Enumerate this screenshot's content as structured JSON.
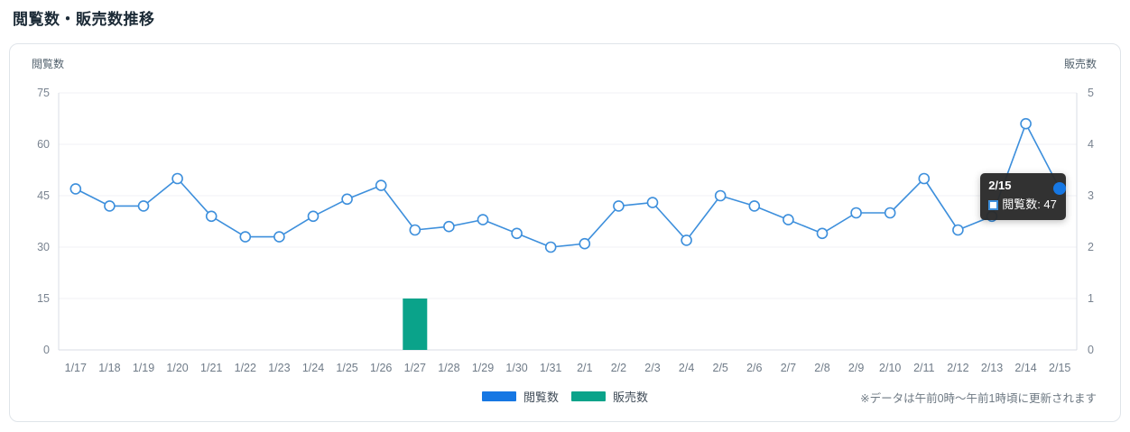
{
  "page": {
    "title": "閲覧数・販売数推移"
  },
  "panel": {
    "left_axis_title": "閲覧数",
    "right_axis_title": "販売数",
    "footnote": "※データは午前0時〜午前1時頃に更新されます"
  },
  "legend": {
    "items": [
      {
        "label": "閲覧数",
        "color": "#1677e3"
      },
      {
        "label": "販売数",
        "color": "#0aa38a"
      }
    ]
  },
  "tooltip": {
    "date": "2/15",
    "text": "閲覧数: 47",
    "marker_border": "#3d8fdc",
    "points_to_category": "2/15"
  },
  "colors": {
    "line": "#3d8fdc",
    "point_fill": "#ffffff",
    "highlight_dot": "#1677e3",
    "bar": "#0aa38a",
    "gridline": "#f0f2f5",
    "plot_border": "#d9dee4",
    "tick_label": "#798390",
    "x_label": "#6f7b88"
  },
  "chart_data": {
    "type": "line",
    "categories": [
      "1/17",
      "1/18",
      "1/19",
      "1/20",
      "1/21",
      "1/22",
      "1/23",
      "1/24",
      "1/25",
      "1/26",
      "1/27",
      "1/28",
      "1/29",
      "1/30",
      "1/31",
      "2/1",
      "2/2",
      "2/3",
      "2/4",
      "2/5",
      "2/6",
      "2/7",
      "2/8",
      "2/9",
      "2/10",
      "2/11",
      "2/12",
      "2/13",
      "2/14",
      "2/15"
    ],
    "series": [
      {
        "name": "閲覧数",
        "type": "line",
        "axis": "left",
        "color": "#1677e3",
        "line_color": "#3d8fdc",
        "values": [
          47,
          42,
          42,
          50,
          39,
          33,
          33,
          39,
          44,
          48,
          35,
          36,
          38,
          34,
          30,
          31,
          42,
          43,
          32,
          45,
          42,
          38,
          34,
          40,
          40,
          50,
          35,
          39,
          66,
          47
        ]
      },
      {
        "name": "販売数",
        "type": "bar",
        "axis": "right",
        "color": "#0aa38a",
        "values": [
          0,
          0,
          0,
          0,
          0,
          0,
          0,
          0,
          0,
          0,
          1,
          0,
          0,
          0,
          0,
          0,
          0,
          0,
          0,
          0,
          0,
          0,
          0,
          0,
          0,
          0,
          0,
          0,
          0,
          0
        ]
      }
    ],
    "title": "閲覧数・販売数推移",
    "xlabel": "",
    "left_axis": {
      "label": "閲覧数",
      "ticks": [
        0,
        15,
        30,
        45,
        60,
        75
      ],
      "max": 75
    },
    "right_axis": {
      "label": "販売数",
      "ticks": [
        0,
        1,
        2,
        3,
        4,
        5
      ],
      "max": 5
    },
    "grid": true,
    "legend_position": "bottom-center",
    "highlighted_point": {
      "category": "2/15",
      "series": "閲覧数",
      "value": 47
    }
  }
}
